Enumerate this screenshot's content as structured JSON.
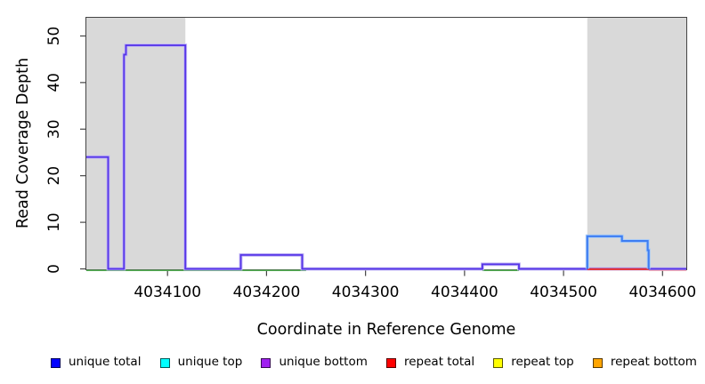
{
  "chart_data": {
    "type": "line",
    "title": "",
    "xlabel": "Coordinate in Reference Genome",
    "ylabel": "Read Coverage Depth",
    "xlim": [
      4034018,
      4034624
    ],
    "ylim": [
      0,
      54
    ],
    "x_ticks": [
      4034100,
      4034200,
      4034300,
      4034400,
      4034500,
      4034600
    ],
    "y_ticks": [
      0,
      10,
      20,
      30,
      40,
      50
    ],
    "grid": false,
    "shade_color": "#d9d9d9",
    "axis_color": "#444444",
    "text_color": "#000000",
    "shaded_regions": [
      {
        "from": 4034018,
        "to": 4034118
      },
      {
        "from": 4034524,
        "to": 4034624
      }
    ],
    "series": [
      {
        "name": "unique bottom coverage",
        "color": "#5636e8",
        "halo": "#c3b8f5",
        "points": [
          [
            4034018,
            24
          ],
          [
            4034040,
            24
          ],
          [
            4034040,
            0
          ],
          [
            4034056,
            0
          ],
          [
            4034056,
            46
          ],
          [
            4034058,
            46
          ],
          [
            4034058,
            48
          ],
          [
            4034118,
            48
          ],
          [
            4034118,
            0
          ],
          [
            4034174,
            0
          ],
          [
            4034174,
            3
          ],
          [
            4034236,
            3
          ],
          [
            4034236,
            0
          ],
          [
            4034418,
            0
          ],
          [
            4034418,
            1
          ],
          [
            4034455,
            1
          ],
          [
            4034455,
            0
          ],
          [
            4034624,
            0
          ]
        ]
      },
      {
        "name": "unique total coverage (right peak)",
        "color": "#3e7df2",
        "halo": "#a9cdf8",
        "points": [
          [
            4034524,
            0
          ],
          [
            4034524,
            7
          ],
          [
            4034559,
            7
          ],
          [
            4034559,
            6
          ],
          [
            4034585,
            6
          ],
          [
            4034585,
            4
          ],
          [
            4034586,
            4
          ],
          [
            4034586,
            0
          ]
        ]
      },
      {
        "name": "unique top zero line",
        "color": "#54b054",
        "value": 0,
        "zero_segments": [
          {
            "from": 4034018,
            "to": 4034240
          },
          {
            "from": 4034418,
            "to": 4034455
          }
        ]
      },
      {
        "name": "repeat total zero line",
        "color": "#e62e2e",
        "faint_color": "#f2a3ab",
        "value": 0,
        "zero_segments_prominent": [
          {
            "from": 4034524,
            "to": 4034586
          }
        ],
        "zero_segments_faint": [
          {
            "from": 4034586,
            "to": 4034624
          }
        ]
      }
    ]
  },
  "legend": {
    "items": [
      {
        "label": "unique total",
        "color": "#0000FF"
      },
      {
        "label": "unique top",
        "color": "#00FFFF"
      },
      {
        "label": "unique bottom",
        "color": "#A020F0"
      },
      {
        "label": "repeat total",
        "color": "#FF0000"
      },
      {
        "label": "repeat top",
        "color": "#FFFF00"
      },
      {
        "label": "repeat bottom",
        "color": "#FFA500"
      }
    ]
  }
}
